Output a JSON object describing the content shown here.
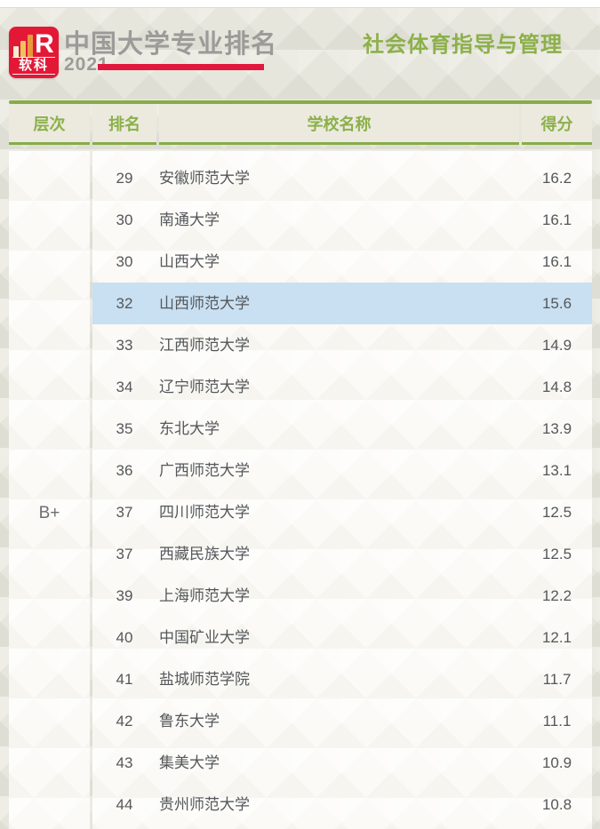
{
  "brand": {
    "logo_text": "软科",
    "logo_r": "R",
    "title": "中国大学专业排名",
    "year": "2021"
  },
  "page": {
    "subject_title": "社会体育指导与管理"
  },
  "table": {
    "headers": {
      "tier": "层次",
      "rank": "排名",
      "school": "学校名称",
      "score": "得分"
    },
    "tier_label": "B+",
    "rows": [
      {
        "rank": "29",
        "school": "安徽师范大学",
        "score": "16.2",
        "highlighted": false
      },
      {
        "rank": "30",
        "school": "南通大学",
        "score": "16.1",
        "highlighted": false
      },
      {
        "rank": "30",
        "school": "山西大学",
        "score": "16.1",
        "highlighted": false
      },
      {
        "rank": "32",
        "school": "山西师范大学",
        "score": "15.6",
        "highlighted": true
      },
      {
        "rank": "33",
        "school": "江西师范大学",
        "score": "14.9",
        "highlighted": false
      },
      {
        "rank": "34",
        "school": "辽宁师范大学",
        "score": "14.8",
        "highlighted": false
      },
      {
        "rank": "35",
        "school": "东北大学",
        "score": "13.9",
        "highlighted": false
      },
      {
        "rank": "36",
        "school": "广西师范大学",
        "score": "13.1",
        "highlighted": false
      },
      {
        "rank": "37",
        "school": "四川师范大学",
        "score": "12.5",
        "highlighted": false
      },
      {
        "rank": "37",
        "school": "西藏民族大学",
        "score": "12.5",
        "highlighted": false
      },
      {
        "rank": "39",
        "school": "上海师范大学",
        "score": "12.2",
        "highlighted": false
      },
      {
        "rank": "40",
        "school": "中国矿业大学",
        "score": "12.1",
        "highlighted": false
      },
      {
        "rank": "41",
        "school": "盐城师范学院",
        "score": "11.7",
        "highlighted": false
      },
      {
        "rank": "42",
        "school": "鲁东大学",
        "score": "11.1",
        "highlighted": false
      },
      {
        "rank": "43",
        "school": "集美大学",
        "score": "10.9",
        "highlighted": false
      },
      {
        "rank": "44",
        "school": "贵州师范大学",
        "score": "10.8",
        "highlighted": false
      }
    ]
  },
  "colors": {
    "accent_green": "#8cb04a",
    "line_green": "#86ac48",
    "brand_red": "#e2173d",
    "logo_red": "#e31837",
    "highlight_blue": "#c9e0f2",
    "page_bg": "#e7e6dd",
    "panel_bg": "#fbfaf6",
    "text_dark": "#54575a",
    "text_gray": "#9b9b99"
  }
}
